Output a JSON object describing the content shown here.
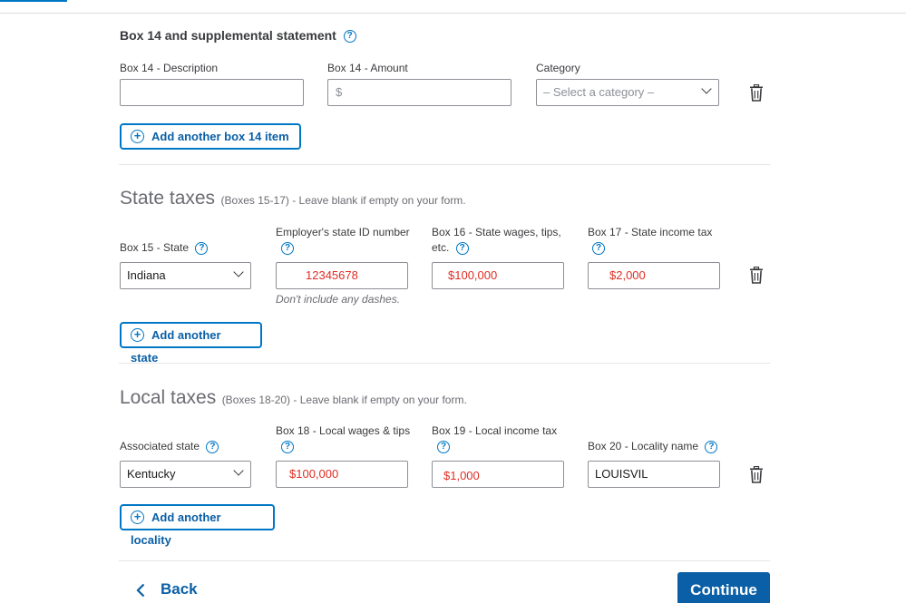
{
  "box14": {
    "title": "Box 14 and supplemental statement",
    "description_label": "Box 14 - Description",
    "description_value": "",
    "amount_label": "Box 14 - Amount",
    "amount_placeholder": "$",
    "category_label": "Category",
    "category_placeholder": "– Select a category –",
    "add_button": "Add another box 14 item"
  },
  "state": {
    "title": "State taxes",
    "subtitle": "(Boxes 15-17) - Leave blank if empty on your form.",
    "box15_label": "Box 15 - State",
    "box15_value": "Indiana",
    "employer_id_label": "Employer's state ID number",
    "employer_id_value": "12345678",
    "employer_id_hint": "Don't include any dashes.",
    "box16_label_line1": "Box 16 - State wages, tips,",
    "box16_label_line2": "etc.",
    "box16_value": "$100,000",
    "box17_label": "Box 17 - State income tax",
    "box17_value": "$2,000",
    "add_button": "Add another state"
  },
  "local": {
    "title": "Local taxes",
    "subtitle": "(Boxes 18-20) - Leave blank if empty on your form.",
    "assoc_label": "Associated state",
    "assoc_value": "Kentucky",
    "box18_label": "Box 18 - Local wages & tips",
    "box18_value": "$100,000",
    "box19_label": "Box 19 - Local income tax",
    "box19_value": "$1,000",
    "box20_label": "Box 20 - Locality name",
    "box20_value": "LOUISVIL",
    "add_button": "Add another locality"
  },
  "footer": {
    "back_label": "Back",
    "continue_label": "Continue"
  },
  "icons": {
    "help": "question-circle-icon",
    "trash": "trash-icon",
    "plus": "plus-circle-icon",
    "chevron": "chevron-down-icon",
    "back": "chevron-left-icon"
  },
  "colors": {
    "accent": "#0077c5",
    "button_text": "#0a5fa6",
    "entered_value": "#e02d23"
  }
}
